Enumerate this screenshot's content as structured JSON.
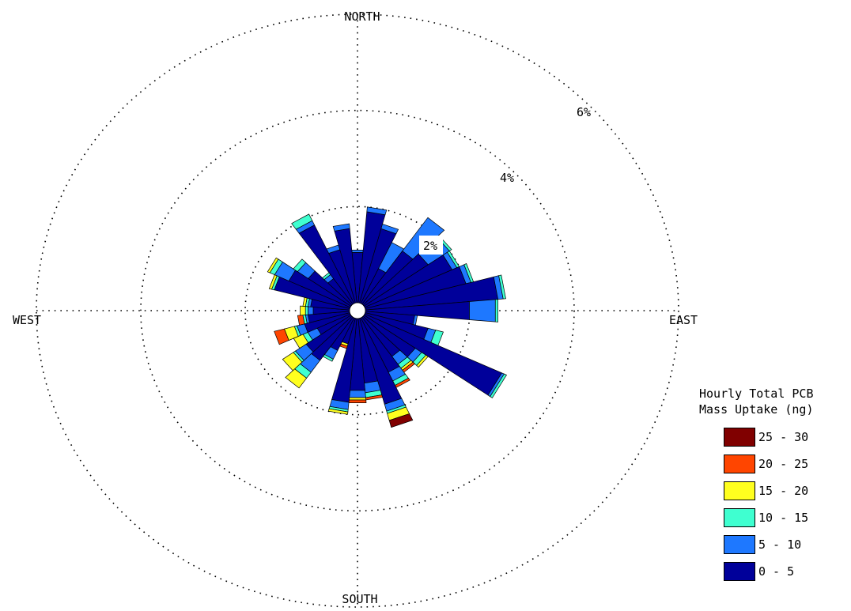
{
  "chart_data": {
    "type": "windrose",
    "directions": {
      "north": "NORTH",
      "east": "EAST",
      "south": "SOUTH",
      "west": "WEST"
    },
    "ring_labels": [
      "2%",
      "4%",
      "6%"
    ],
    "ring_values": [
      2,
      4,
      6
    ],
    "rmax": 6,
    "legend_title": [
      "Hourly Total PCB",
      "Mass Uptake (ng)"
    ],
    "bins": [
      {
        "label": "25 - 30",
        "color": "#800000"
      },
      {
        "label": "20 - 25",
        "color": "#ff4500"
      },
      {
        "label": "15 - 20",
        "color": "#ffff1f"
      },
      {
        "label": "10 - 15",
        "color": "#3fffd0"
      },
      {
        "label": "5 - 10",
        "color": "#1e78ff"
      },
      {
        "label": "0 - 5",
        "color": "#00009a"
      }
    ],
    "sector_width_deg": 10,
    "sectors": [
      {
        "dir": 0,
        "seg": [
          1.05,
          0.05,
          0,
          0,
          0,
          0
        ]
      },
      {
        "dir": 10,
        "seg": [
          1.9,
          0.1,
          0,
          0,
          0,
          0
        ]
      },
      {
        "dir": 20,
        "seg": [
          1.6,
          0.1,
          0,
          0,
          0,
          0
        ]
      },
      {
        "dir": 30,
        "seg": [
          0.8,
          0.6,
          0,
          0,
          0,
          0
        ]
      },
      {
        "dir": 40,
        "seg": [
          1.35,
          0.85,
          0,
          0,
          0,
          0
        ]
      },
      {
        "dir": 50,
        "seg": [
          1.5,
          0.5,
          0.05,
          0,
          0,
          0
        ]
      },
      {
        "dir": 60,
        "seg": [
          1.85,
          0.1,
          0.05,
          0,
          0,
          0
        ]
      },
      {
        "dir": 70,
        "seg": [
          2.0,
          0.1,
          0.05,
          0,
          0,
          0
        ]
      },
      {
        "dir": 80,
        "seg": [
          2.55,
          0.1,
          0.05,
          0,
          0,
          0
        ]
      },
      {
        "dir": 90,
        "seg": [
          2.0,
          0.5,
          0.05,
          0,
          0,
          0
        ]
      },
      {
        "dir": 100,
        "seg": [
          0.95,
          0.05,
          0,
          0,
          0,
          0
        ]
      },
      {
        "dir": 110,
        "seg": [
          1.25,
          0.15,
          0.15,
          0,
          0,
          0
        ]
      },
      {
        "dir": 120,
        "seg": [
          2.9,
          0.05,
          0.05,
          0,
          0,
          0
        ]
      },
      {
        "dir": 130,
        "seg": [
          1.2,
          0.15,
          0.1,
          0.05,
          0,
          0
        ]
      },
      {
        "dir": 140,
        "seg": [
          1.0,
          0.2,
          0.1,
          0.05,
          0.05,
          0
        ]
      },
      {
        "dir": 150,
        "seg": [
          1.25,
          0.2,
          0.1,
          0,
          0.05,
          0
        ]
      },
      {
        "dir": 160,
        "seg": [
          1.85,
          0.15,
          0.05,
          0.15,
          0,
          0.15
        ]
      },
      {
        "dir": 170,
        "seg": [
          1.35,
          0.2,
          0.1,
          0,
          0.05,
          0
        ]
      },
      {
        "dir": 180,
        "seg": [
          1.5,
          0.15,
          0,
          0.05,
          0.06,
          0
        ]
      },
      {
        "dir": 190,
        "seg": [
          1.75,
          0.15,
          0.05,
          0.05,
          0,
          0
        ]
      },
      {
        "dir": 200,
        "seg": [
          0.55,
          0.0,
          0,
          0.05,
          0.05,
          0
        ]
      },
      {
        "dir": 210,
        "seg": [
          0.75,
          0.2,
          0.05,
          0,
          0,
          0
        ]
      },
      {
        "dir": 220,
        "seg": [
          1.1,
          0.3,
          0.15,
          0.25,
          0,
          0
        ]
      },
      {
        "dir": 230,
        "seg": [
          1.05,
          0.25,
          0.05,
          0.25,
          0,
          0
        ]
      },
      {
        "dir": 240,
        "seg": [
          0.7,
          0.2,
          0.1,
          0.2,
          0,
          0
        ]
      },
      {
        "dir": 250,
        "seg": [
          0.9,
          0.15,
          0.05,
          0.2,
          0.2,
          0
        ]
      },
      {
        "dir": 260,
        "seg": [
          0.8,
          0.05,
          0.05,
          0.0,
          0.1,
          0
        ]
      },
      {
        "dir": 270,
        "seg": [
          0.7,
          0.1,
          0.05,
          0.1,
          0,
          0
        ]
      },
      {
        "dir": 280,
        "seg": [
          0.75,
          0.05,
          0.05,
          0.05,
          0,
          0
        ]
      },
      {
        "dir": 290,
        "seg": [
          1.5,
          0.0,
          0.05,
          0.05,
          0,
          0
        ]
      },
      {
        "dir": 300,
        "seg": [
          1.3,
          0.3,
          0.1,
          0.05,
          0,
          0
        ]
      },
      {
        "dir": 310,
        "seg": [
          1.0,
          0.25,
          0.1,
          0,
          0,
          0
        ]
      },
      {
        "dir": 320,
        "seg": [
          0.65,
          0.1,
          0.05,
          0,
          0,
          0
        ]
      },
      {
        "dir": 330,
        "seg": [
          1.8,
          0.1,
          0.15,
          0,
          0,
          0
        ]
      },
      {
        "dir": 340,
        "seg": [
          1.15,
          0.1,
          0,
          0,
          0,
          0
        ]
      },
      {
        "dir": 350,
        "seg": [
          1.55,
          0.1,
          0,
          0,
          0,
          0
        ]
      }
    ]
  }
}
